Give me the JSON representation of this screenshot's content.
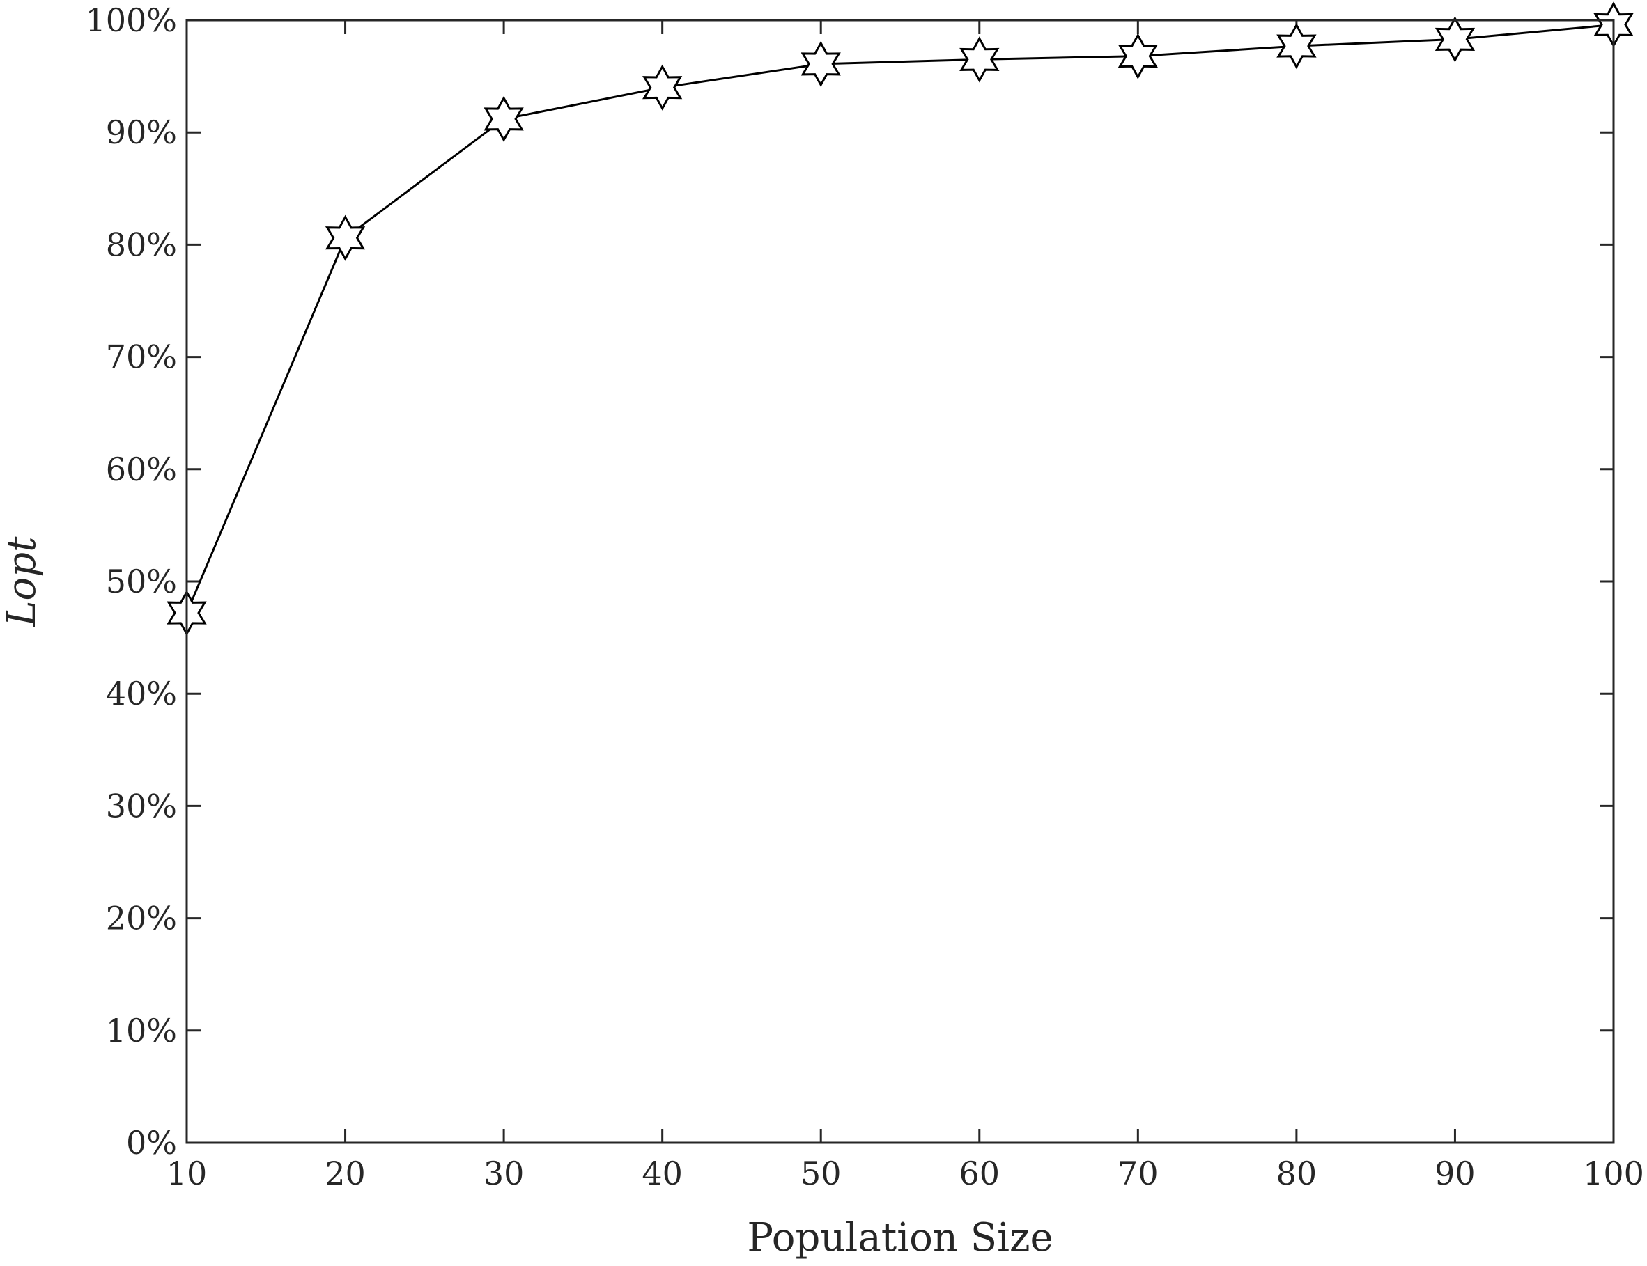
{
  "chart_data": {
    "type": "line",
    "title": "",
    "xlabel": "Population Size",
    "ylabel": "Lopt",
    "xlim": [
      10,
      100
    ],
    "ylim": [
      0,
      100
    ],
    "x_ticks": [
      10,
      20,
      30,
      40,
      50,
      60,
      70,
      80,
      90,
      100
    ],
    "x_tick_labels": [
      "10",
      "20",
      "30",
      "40",
      "50",
      "60",
      "70",
      "80",
      "90",
      "100"
    ],
    "y_ticks": [
      0,
      10,
      20,
      30,
      40,
      50,
      60,
      70,
      80,
      90,
      100
    ],
    "y_tick_labels": [
      "0%",
      "10%",
      "20%",
      "30%",
      "40%",
      "50%",
      "60%",
      "70%",
      "80%",
      "90%",
      "100%"
    ],
    "grid": false,
    "legend": "none",
    "series": [
      {
        "marker": "hexagram",
        "color": "#000000",
        "x": [
          10,
          20,
          30,
          40,
          50,
          60,
          70,
          80,
          90,
          100
        ],
        "y": [
          47.2,
          80.6,
          91.2,
          94.0,
          96.1,
          96.5,
          96.8,
          97.7,
          98.3,
          99.6
        ]
      }
    ]
  }
}
